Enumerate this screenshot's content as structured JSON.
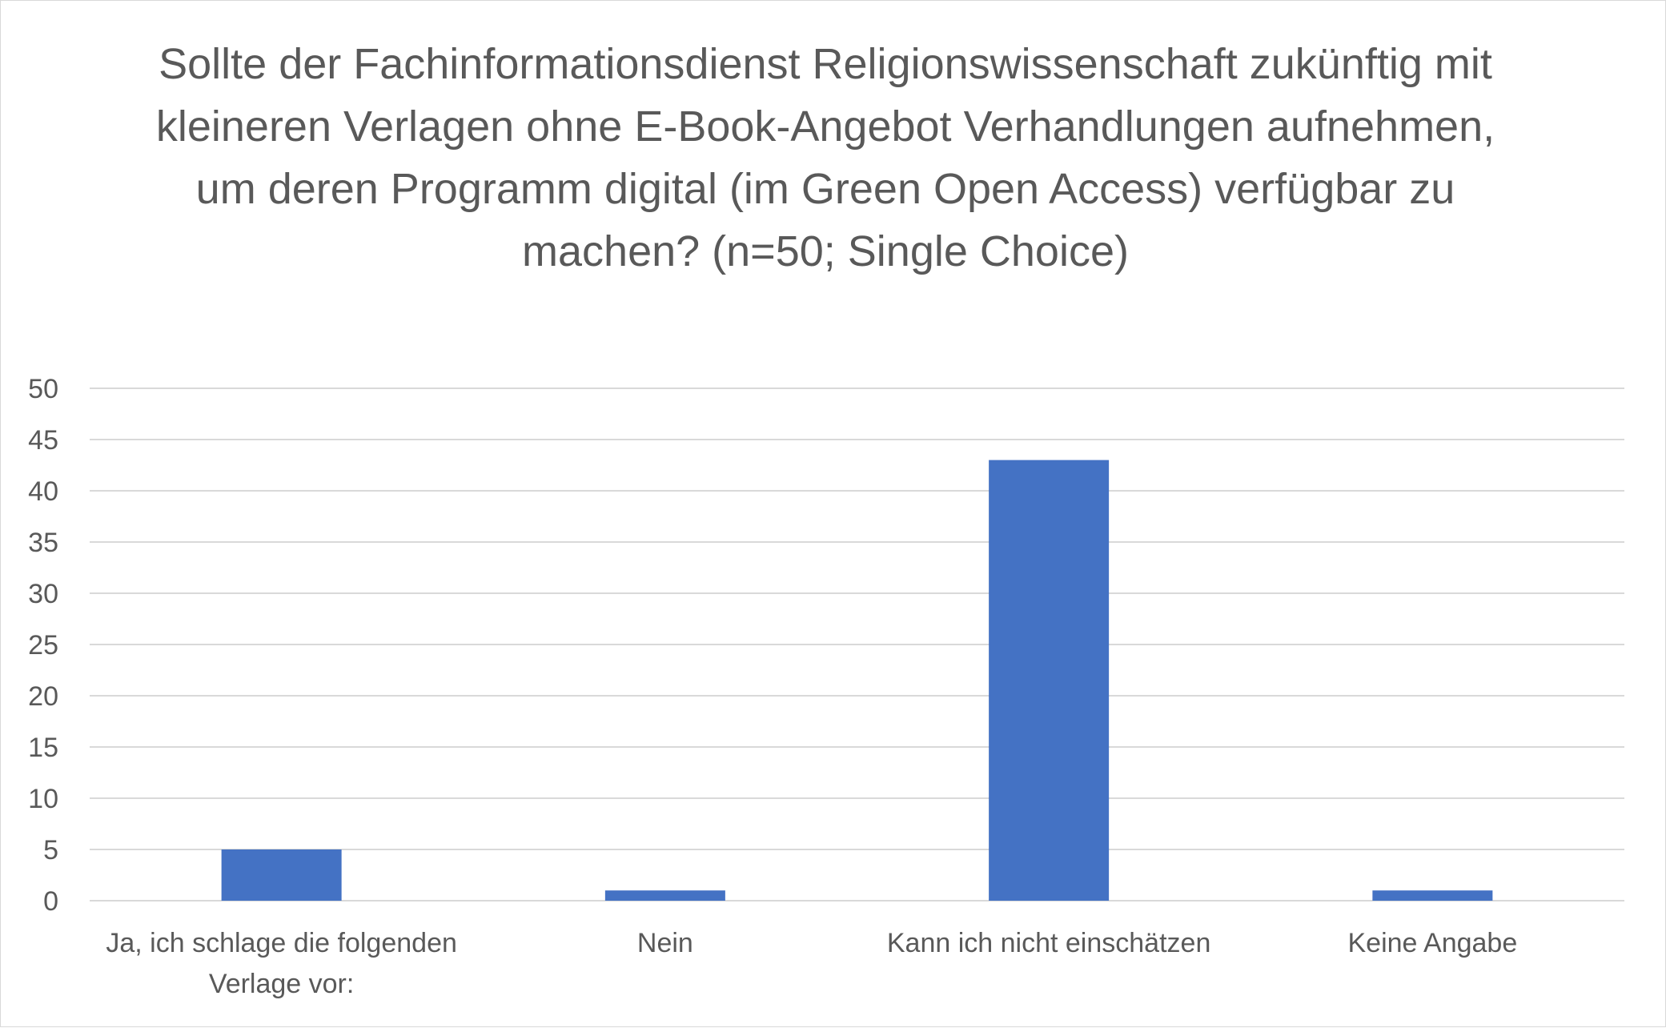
{
  "chart_data": {
    "type": "bar",
    "title": "Sollte der Fachinformationsdienst Religionswissenschaft zukünftig mit kleineren Verlagen ohne E-Book-Angebot Verhandlungen aufnehmen, um deren Programm digital (im Green Open Access) verfügbar zu machen? (n=50; Single Choice)",
    "xlabel": "",
    "ylabel": "",
    "categories": [
      "Ja, ich schlage die folgenden Verlage vor:",
      "Nein",
      "Kann ich nicht einschätzen",
      "Keine Angabe"
    ],
    "values": [
      5,
      1,
      43,
      1
    ],
    "ylim": [
      0,
      50
    ],
    "yticks": [
      "0",
      "5",
      "10",
      "15",
      "20",
      "25",
      "30",
      "35",
      "40",
      "45",
      "50"
    ],
    "grid": true,
    "legend": "none",
    "bar_color": "#4472C4",
    "grid_color": "#d9d9d9"
  }
}
